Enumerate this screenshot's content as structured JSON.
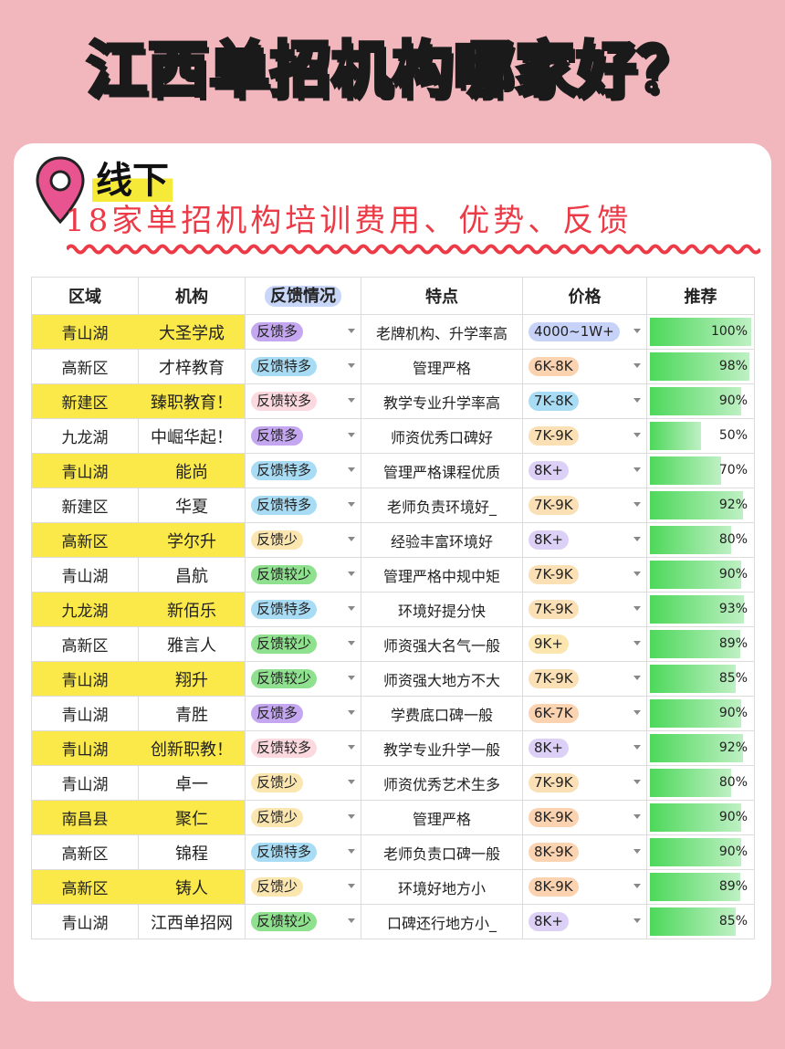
{
  "title": "江西单招机构哪家好？",
  "tag": "线下",
  "subtitle": "18家单招机构培训费用、优势、反馈",
  "headers": [
    "区域",
    "机构",
    "反馈情况",
    "特点",
    "价格",
    "推荐"
  ],
  "colors": {
    "background": "#f2b6bd",
    "highlight": "#fbe94a",
    "accent_red": "#ec3b47",
    "pin": "#e8548f",
    "feedback": {
      "反馈多": "#c4a7f0",
      "反馈特多": "#a7dcf4",
      "反馈较多": "#fbd9df",
      "反馈少": "#fbe6b0",
      "反馈较少": "#8fe08f"
    },
    "price": {
      "4000~1W+": "#c6d2f7",
      "6K-8K": "#fbd3b0",
      "7K-8K": "#a7dcf4",
      "7K-9K": "#fbe0b5",
      "8K+": "#ddd0f7",
      "9K+": "#fbe6b0",
      "6K-7K": "#fbd3b0",
      "8K-9K": "#fbd3b0"
    }
  },
  "rows": [
    {
      "region": "青山湖",
      "org": "大圣学成",
      "feedback": "反馈多",
      "feature": "老牌机构、升学率高",
      "price": "4000~1W+",
      "rec": 100,
      "rec_label": "100%",
      "hl": true
    },
    {
      "region": "高新区",
      "org": "才梓教育",
      "feedback": "反馈特多",
      "feature": "管理严格",
      "price": "6K-8K",
      "rec": 98,
      "rec_label": "98%",
      "hl": false
    },
    {
      "region": "新建区",
      "org": "臻职教育！",
      "feedback": "反馈较多",
      "feature": "教学专业升学率高",
      "price": "7K-8K",
      "rec": 90,
      "rec_label": "90%",
      "hl": true
    },
    {
      "region": "九龙湖",
      "org": "中崛华起！",
      "feedback": "反馈多",
      "feature": "师资优秀口碑好",
      "price": "7K-9K",
      "rec": 50,
      "rec_label": "50%",
      "hl": false
    },
    {
      "region": "青山湖",
      "org": "能尚",
      "feedback": "反馈特多",
      "feature": "管理严格课程优质",
      "price": "8K+",
      "rec": 70,
      "rec_label": "70%",
      "hl": true
    },
    {
      "region": "新建区",
      "org": "华夏",
      "feedback": "反馈特多",
      "feature": "老师负责环境好_",
      "price": "7K-9K",
      "rec": 92,
      "rec_label": "92%",
      "hl": false
    },
    {
      "region": "高新区",
      "org": "学尔升",
      "feedback": "反馈少",
      "feature": "经验丰富环境好",
      "price": "8K+",
      "rec": 80,
      "rec_label": "80%",
      "hl": true
    },
    {
      "region": "青山湖",
      "org": "昌航",
      "feedback": "反馈较少",
      "feature": "管理严格中规中矩",
      "price": "7K-9K",
      "rec": 90,
      "rec_label": "90%",
      "hl": false
    },
    {
      "region": "九龙湖",
      "org": "新佰乐",
      "feedback": "反馈特多",
      "feature": "环境好提分快",
      "price": "7K-9K",
      "rec": 93,
      "rec_label": "93%",
      "hl": true
    },
    {
      "region": "高新区",
      "org": "雅言人",
      "feedback": "反馈较少",
      "feature": "师资强大名气一般",
      "price": "9K+",
      "rec": 89,
      "rec_label": "89%",
      "hl": false
    },
    {
      "region": "青山湖",
      "org": "翔升",
      "feedback": "反馈较少",
      "feature": "师资强大地方不大",
      "price": "7K-9K",
      "rec": 85,
      "rec_label": "85%",
      "hl": true
    },
    {
      "region": "青山湖",
      "org": "青胜",
      "feedback": "反馈多",
      "feature": "学费底口碑一般",
      "price": "6K-7K",
      "rec": 90,
      "rec_label": "90%",
      "hl": false
    },
    {
      "region": "青山湖",
      "org": "创新职教！",
      "feedback": "反馈较多",
      "feature": "教学专业升学一般",
      "price": "8K+",
      "rec": 92,
      "rec_label": "92%",
      "hl": true
    },
    {
      "region": "青山湖",
      "org": "卓一",
      "feedback": "反馈少",
      "feature": "师资优秀艺术生多",
      "price": "7K-9K",
      "rec": 80,
      "rec_label": "80%",
      "hl": false
    },
    {
      "region": "南昌县",
      "org": "聚仁",
      "feedback": "反馈少",
      "feature": "管理严格",
      "price": "8K-9K",
      "rec": 90,
      "rec_label": "90%",
      "hl": true
    },
    {
      "region": "高新区",
      "org": "锦程",
      "feedback": "反馈特多",
      "feature": "老师负责口碑一般",
      "price": "8K-9K",
      "rec": 90,
      "rec_label": "90%",
      "hl": false
    },
    {
      "region": "高新区",
      "org": "铸人",
      "feedback": "反馈少",
      "feature": "环境好地方小",
      "price": "8K-9K",
      "rec": 89,
      "rec_label": "89%",
      "hl": true
    },
    {
      "region": "青山湖",
      "org": "江西单招网",
      "feedback": "反馈较少",
      "feature": "口碑还行地方小_",
      "price": "8K+",
      "rec": 85,
      "rec_label": "85%",
      "hl": false
    }
  ]
}
